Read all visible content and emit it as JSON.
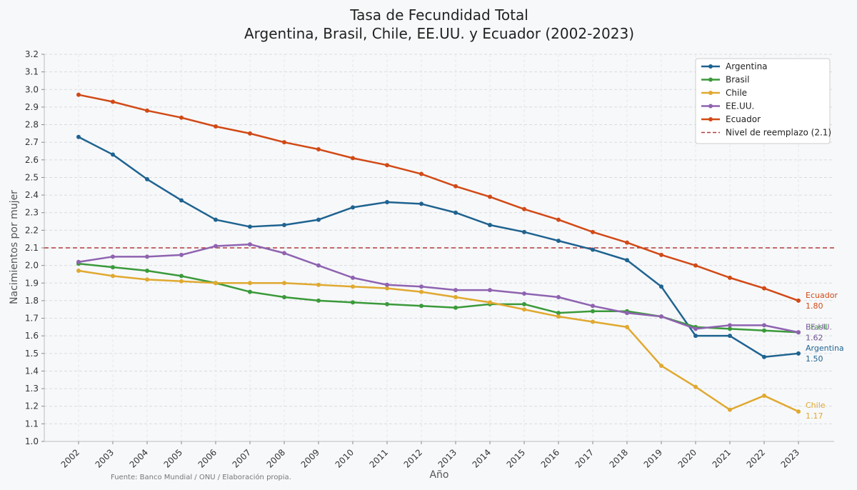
{
  "chart_data": {
    "type": "line",
    "title": "Tasa de Fecundidad Total",
    "subtitle": "Argentina, Brasil, Chile, EE.UU. y Ecuador (2002-2023)",
    "xlabel": "Año",
    "ylabel": "Nacimientos por mujer",
    "source": "Fuente: Banco Mundial / ONU / Elaboración propia.",
    "x": [
      2002,
      2003,
      2004,
      2005,
      2006,
      2007,
      2008,
      2009,
      2010,
      2011,
      2012,
      2013,
      2014,
      2015,
      2016,
      2017,
      2018,
      2019,
      2020,
      2021,
      2022,
      2023
    ],
    "ylim": [
      1.0,
      3.2
    ],
    "yticks": [
      "1.0",
      "1.1",
      "1.2",
      "1.3",
      "1.4",
      "1.5",
      "1.6",
      "1.7",
      "1.8",
      "1.9",
      "2.0",
      "2.1",
      "2.2",
      "2.3",
      "2.4",
      "2.5",
      "2.6",
      "2.7",
      "2.8",
      "2.9",
      "3.0",
      "3.1",
      "3.2"
    ],
    "grid": true,
    "legend_position": "top-right",
    "series": [
      {
        "name": "Argentina",
        "color": "#1f6390",
        "values": [
          2.73,
          2.63,
          2.49,
          2.37,
          2.26,
          2.22,
          2.23,
          2.26,
          2.33,
          2.36,
          2.35,
          2.3,
          2.23,
          2.19,
          2.14,
          2.09,
          2.03,
          1.88,
          1.6,
          1.6,
          1.48,
          1.5
        ],
        "end_label": "Argentina",
        "end_value": "1.50"
      },
      {
        "name": "Brasil",
        "color": "#3a9a3a",
        "values": [
          2.01,
          1.99,
          1.97,
          1.94,
          1.9,
          1.85,
          1.82,
          1.8,
          1.79,
          1.78,
          1.77,
          1.76,
          1.78,
          1.78,
          1.73,
          1.74,
          1.74,
          1.71,
          1.65,
          1.64,
          1.63,
          1.62
        ],
        "end_label": "Brasil",
        "end_value": "1.62"
      },
      {
        "name": "Chile",
        "color": "#e0a930",
        "values": [
          1.97,
          1.94,
          1.92,
          1.91,
          1.9,
          1.9,
          1.9,
          1.89,
          1.88,
          1.87,
          1.85,
          1.82,
          1.79,
          1.75,
          1.71,
          1.68,
          1.65,
          1.43,
          1.31,
          1.18,
          1.26,
          1.17
        ],
        "end_label": "Chile",
        "end_value": "1.17"
      },
      {
        "name": "EE.UU.",
        "color": "#8e63b0",
        "values": [
          2.02,
          2.05,
          2.05,
          2.06,
          2.11,
          2.12,
          2.07,
          2.0,
          1.93,
          1.89,
          1.88,
          1.86,
          1.86,
          1.84,
          1.82,
          1.77,
          1.73,
          1.71,
          1.64,
          1.66,
          1.66,
          1.62
        ],
        "end_label": "EE.UU.",
        "end_value": "1.62"
      },
      {
        "name": "Ecuador",
        "color": "#d14a16",
        "values": [
          2.97,
          2.93,
          2.88,
          2.84,
          2.79,
          2.75,
          2.7,
          2.66,
          2.61,
          2.57,
          2.52,
          2.45,
          2.39,
          2.32,
          2.26,
          2.19,
          2.13,
          2.06,
          2.0,
          1.93,
          1.87,
          1.8
        ],
        "end_label": "Ecuador",
        "end_value": "1.80"
      }
    ],
    "reference_line": {
      "name": "Nivel de reemplazo (2.1)",
      "value": 2.1,
      "color": "#b23a3a"
    }
  }
}
